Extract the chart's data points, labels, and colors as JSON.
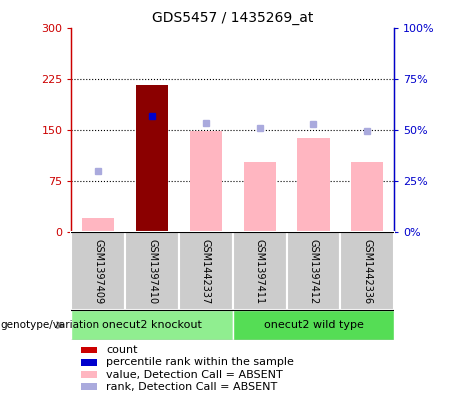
{
  "title": "GDS5457 / 1435269_at",
  "samples": [
    "GSM1397409",
    "GSM1397410",
    "GSM1442337",
    "GSM1397411",
    "GSM1397412",
    "GSM1442336"
  ],
  "groups": [
    {
      "label": "onecut2 knockout",
      "color": "#90EE90",
      "start": 0,
      "end": 3
    },
    {
      "label": "onecut2 wild type",
      "color": "#55DD55",
      "start": 3,
      "end": 6
    }
  ],
  "bar_values": [
    20,
    215,
    148,
    103,
    138,
    103
  ],
  "bar_colors": [
    "#FFB6C1",
    "#8B0000",
    "#FFB6C1",
    "#FFB6C1",
    "#FFB6C1",
    "#FFB6C1"
  ],
  "rank_dots": [
    90,
    170,
    160,
    153,
    158,
    148
  ],
  "rank_dot_colors": [
    "#AAAADD",
    "#0000CD",
    "#AAAADD",
    "#AAAADD",
    "#AAAADD",
    "#AAAADD"
  ],
  "ylim_left": [
    0,
    300
  ],
  "ylim_right": [
    0,
    100
  ],
  "yticks_left": [
    0,
    75,
    150,
    225,
    300
  ],
  "yticks_right": [
    0,
    25,
    50,
    75,
    100
  ],
  "yticklabels_left": [
    "0",
    "75",
    "150",
    "225",
    "300"
  ],
  "yticklabels_right": [
    "0%",
    "25%",
    "50%",
    "75%",
    "100%"
  ],
  "hlines": [
    75,
    150,
    225
  ],
  "left_axis_color": "#CC0000",
  "right_axis_color": "#0000CC",
  "legend_items": [
    {
      "color": "#CC0000",
      "label": "count"
    },
    {
      "color": "#0000CD",
      "label": "percentile rank within the sample"
    },
    {
      "color": "#FFB6C1",
      "label": "value, Detection Call = ABSENT"
    },
    {
      "color": "#AAAADD",
      "label": "rank, Detection Call = ABSENT"
    }
  ],
  "genotype_label": "genotype/variation"
}
